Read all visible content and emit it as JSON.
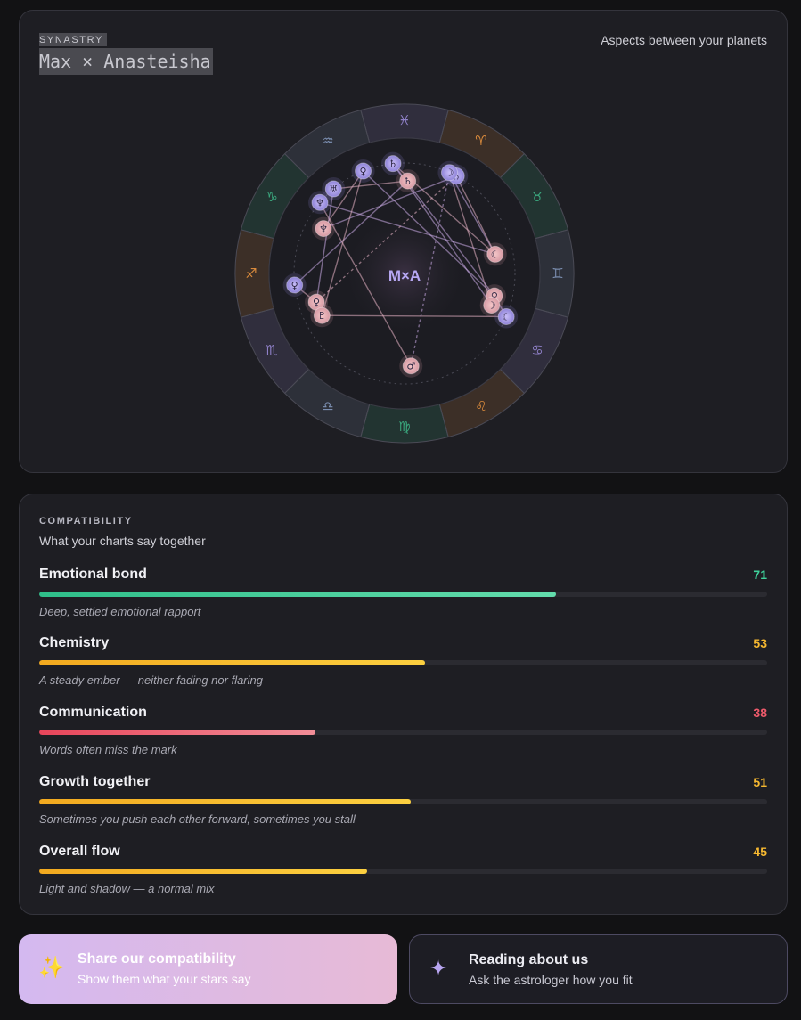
{
  "synastry": {
    "eyebrow": "SYNASTRY",
    "title": "Max × Anasteisha",
    "caption": "Aspects between your planets",
    "center_label": "M×A",
    "zodiac": [
      {
        "glyph": "♈︎",
        "color": "#d98a3c"
      },
      {
        "glyph": "♉︎",
        "color": "#3aa57c"
      },
      {
        "glyph": "♊︎",
        "color": "#7b8eb0"
      },
      {
        "glyph": "♋︎",
        "color": "#8f80c8"
      },
      {
        "glyph": "♌︎",
        "color": "#d98a3c"
      },
      {
        "glyph": "♍︎",
        "color": "#3aa57c"
      },
      {
        "glyph": "♎︎",
        "color": "#7b8eb0"
      },
      {
        "glyph": "♏︎",
        "color": "#8f80c8"
      },
      {
        "glyph": "♐︎",
        "color": "#d98a3c"
      },
      {
        "glyph": "♑︎",
        "color": "#3aa57c"
      },
      {
        "glyph": "♒︎",
        "color": "#7b8eb0"
      },
      {
        "glyph": "♓︎",
        "color": "#8f80c8"
      }
    ],
    "planets_max": [
      {
        "glyph": "♀︎",
        "angle": 112
      },
      {
        "glyph": "♄︎",
        "angle": 96
      },
      {
        "glyph": "♅︎",
        "angle": 130
      },
      {
        "glyph": "♆︎",
        "angle": 140
      },
      {
        "glyph": "♀︎",
        "angle": 186
      },
      {
        "glyph": "☾︎",
        "angle": 337
      },
      {
        "glyph": "♄︎",
        "angle": 62
      },
      {
        "glyph": "☽︎",
        "angle": 66
      }
    ],
    "planets_anasteisha": [
      {
        "glyph": "♄︎",
        "angle": 88
      },
      {
        "glyph": "♆︎",
        "angle": 151
      },
      {
        "glyph": "☾︎",
        "angle": 12
      },
      {
        "glyph": "♀︎",
        "angle": 346
      },
      {
        "glyph": "☽︎",
        "angle": 340
      },
      {
        "glyph": "♂︎",
        "angle": 274
      },
      {
        "glyph": "♀︎",
        "angle": 198
      },
      {
        "glyph": "♇︎",
        "angle": 207
      }
    ]
  },
  "compatibility": {
    "eyebrow": "COMPATIBILITY",
    "subtitle": "What your charts say together",
    "metrics": [
      {
        "label": "Emotional bond",
        "value": 71,
        "value_text": "71",
        "description": "Deep, settled emotional rapport",
        "color_from": "#2fbf8a",
        "color_to": "#63dcac",
        "text_color": "#3fd29b"
      },
      {
        "label": "Chemistry",
        "value": 53,
        "value_text": "53",
        "description": "A steady ember — neither fading nor flaring",
        "color_from": "#f2a91f",
        "color_to": "#fcd040",
        "text_color": "#f6b830"
      },
      {
        "label": "Communication",
        "value": 38,
        "value_text": "38",
        "description": "Words often miss the mark",
        "color_from": "#e8455a",
        "color_to": "#f28e98",
        "text_color": "#ee5a6b"
      },
      {
        "label": "Growth together",
        "value": 51,
        "value_text": "51",
        "description": "Sometimes you push each other forward, sometimes you stall",
        "color_from": "#f2a91f",
        "color_to": "#fcd040",
        "text_color": "#f6b830"
      },
      {
        "label": "Overall flow",
        "value": 45,
        "value_text": "45",
        "description": "Light and shadow — a normal mix",
        "color_from": "#f2a91f",
        "color_to": "#fcd040",
        "text_color": "#f6b830"
      }
    ]
  },
  "actions": {
    "share": {
      "title": "Share our compatibility",
      "subtitle": "Show them what your stars say",
      "icon": "sparkles-icon"
    },
    "reading": {
      "title": "Reading about us",
      "subtitle": "Ask the astrologer how you fit",
      "icon": "sparkle-icon"
    }
  }
}
